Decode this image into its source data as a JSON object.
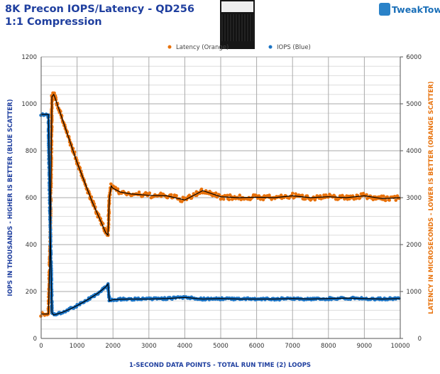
{
  "header": {
    "title": "8K Precon IOPS/Latency - QD256",
    "subtitle": "1:1 Compression",
    "logo_text": "TweakTown"
  },
  "chart_data": {
    "type": "scatter",
    "title": "8K Precon IOPS/Latency - QD256",
    "subtitle": "1:1 Compression",
    "xlabel": "1-SECOND  DATA POINTS - TOTAL RUN TIME (2) LOOPS",
    "ylabel": "IOPS IN THOUSANDS - HIGHER IS BETTER (BLUE SCATTER)",
    "y2label": "LATENCY IN MICROSECONDS - LOWER IS BETTER (ORANGE SCATTER)",
    "xlim": [
      0,
      10000
    ],
    "ylim": [
      0,
      1200
    ],
    "y2lim": [
      0,
      6000
    ],
    "xticks": [
      "0",
      "1000",
      "2000",
      "3000",
      "4000",
      "5000",
      "6000",
      "7000",
      "8000",
      "9000",
      "10000"
    ],
    "yticks": [
      "0",
      "200",
      "400",
      "600",
      "800",
      "1000",
      "1200"
    ],
    "y2ticks": [
      "0",
      "1000",
      "2000",
      "3000",
      "4000",
      "5000",
      "6000"
    ],
    "grid": true,
    "legend_position": "top",
    "colors": {
      "latency": "#e8710a",
      "iops": "#1a73c4",
      "trend": "#000000"
    },
    "x": [
      0,
      100,
      200,
      250,
      300,
      350,
      400,
      600,
      800,
      1000,
      1200,
      1400,
      1600,
      1800,
      1860,
      1900,
      1950,
      2000,
      2200,
      2500,
      3000,
      3500,
      4000,
      4500,
      5000,
      5500,
      6000,
      6500,
      7000,
      7500,
      8000,
      8500,
      9000,
      9500,
      10000
    ],
    "series": [
      {
        "name": "Latency (Orange)",
        "axis": "right",
        "values": [
          520,
          520,
          520,
          2000,
          5150,
          5200,
          5100,
          4650,
          4200,
          3750,
          3350,
          2950,
          2600,
          2250,
          2200,
          3000,
          3250,
          3200,
          3120,
          3080,
          3050,
          3040,
          2950,
          3150,
          3020,
          3000,
          3010,
          3000,
          3040,
          3000,
          3020,
          3000,
          3040,
          2980,
          3000
        ]
      },
      {
        "name": "IOPS (Blue)",
        "axis": "left",
        "values": [
          955,
          955,
          955,
          500,
          110,
          100,
          102,
          112,
          125,
          140,
          157,
          175,
          195,
          220,
          232,
          160,
          163,
          165,
          167,
          168,
          168,
          170,
          175,
          168,
          170,
          168,
          168,
          168,
          170,
          168,
          170,
          172,
          170,
          168,
          170
        ]
      }
    ]
  }
}
